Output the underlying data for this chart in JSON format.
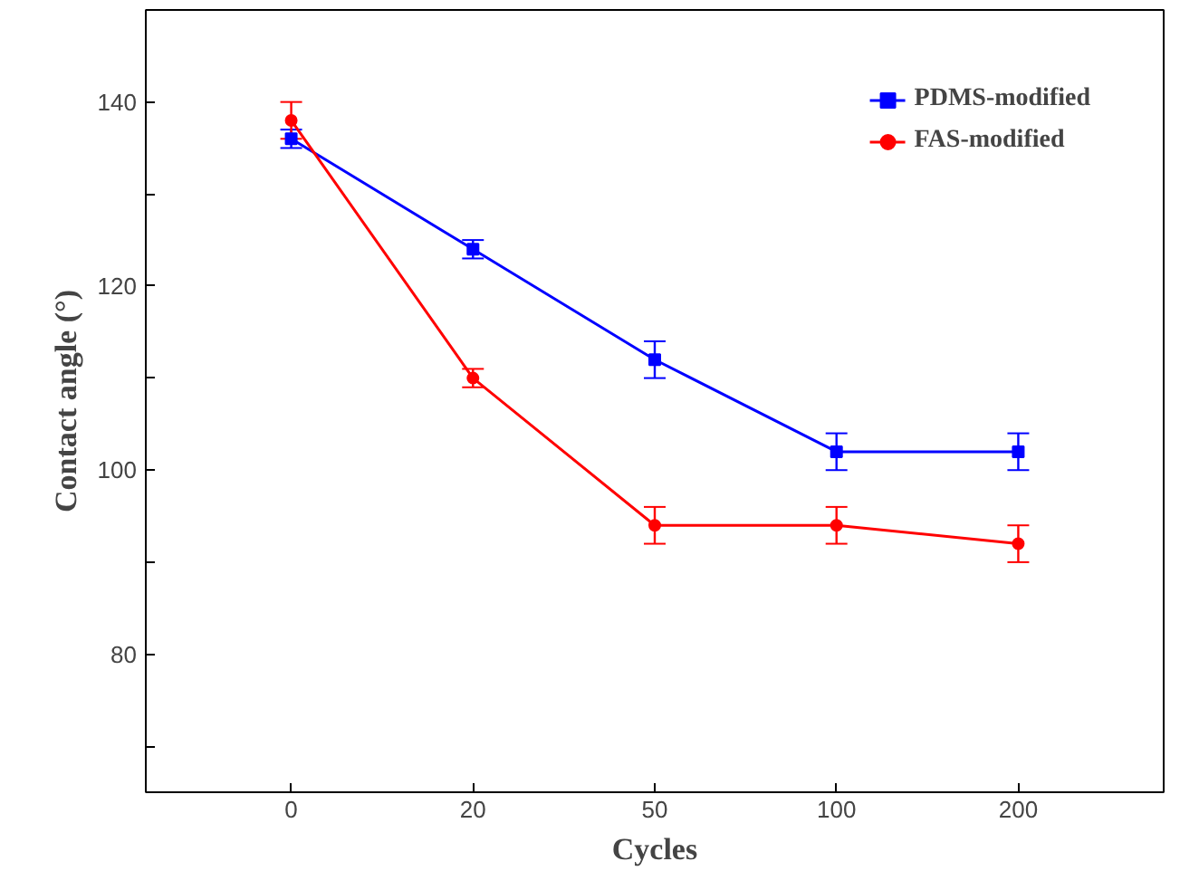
{
  "chart_data": {
    "type": "line",
    "xlabel": "Cycles",
    "ylabel": "Contact angle (°)",
    "categories": [
      "0",
      "20",
      "50",
      "100",
      "200"
    ],
    "ylim": [
      65,
      150
    ],
    "yticks": [
      {
        "value": 70,
        "label": null
      },
      80,
      {
        "value": 90,
        "label": null
      },
      100,
      {
        "value": 110,
        "label": null
      },
      120,
      {
        "value": 130,
        "label": null
      },
      140
    ],
    "legend": "top right",
    "grid": false,
    "line_style": "solid",
    "series": [
      {
        "name": "PDMS-modified",
        "color": "#0000ff",
        "marker": "square",
        "values": [
          136,
          124,
          112,
          102,
          102
        ],
        "errors": [
          1,
          1,
          2,
          2,
          2
        ]
      },
      {
        "name": "FAS-modified",
        "color": "#ff0000",
        "marker": "circle",
        "values": [
          138,
          110,
          94,
          94,
          92
        ],
        "errors": [
          2,
          1,
          2,
          2,
          2
        ]
      }
    ]
  }
}
